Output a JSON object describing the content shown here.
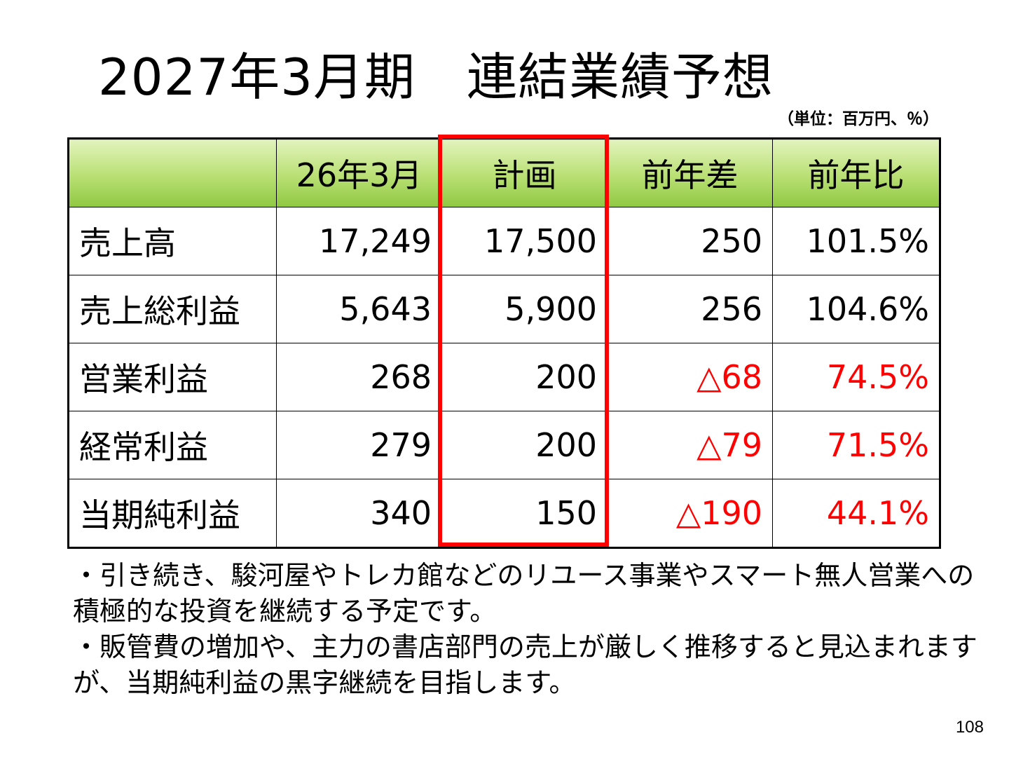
{
  "title": "2027年3月期　連結業績予想",
  "unit_note": "（単位：百万円、％）",
  "table": {
    "headers": [
      "",
      "26年3月",
      "計画",
      "前年差",
      "前年比"
    ],
    "rows": [
      {
        "label": "売上高",
        "prev": "17,249",
        "plan": "17,500",
        "diff": "250",
        "ratio": "101.5%",
        "negative": false
      },
      {
        "label": "売上総利益",
        "prev": "5,643",
        "plan": "5,900",
        "diff": "256",
        "ratio": "104.6%",
        "negative": false
      },
      {
        "label": "営業利益",
        "prev": "268",
        "plan": "200",
        "diff": "△68",
        "ratio": "74.5%",
        "negative": true
      },
      {
        "label": "経常利益",
        "prev": "279",
        "plan": "200",
        "diff": "△79",
        "ratio": "71.5%",
        "negative": true
      },
      {
        "label": "当期純利益",
        "prev": "340",
        "plan": "150",
        "diff": "△190",
        "ratio": "44.1%",
        "negative": true
      }
    ],
    "highlighted_column": "計画",
    "header_color": "#a6d65a",
    "highlight_color": "#ff0000",
    "negative_color": "#ff0000"
  },
  "notes": [
    "・引き続き、駿河屋やトレカ館などのリユース事業やスマート無人営業への積極的な投資を継続する予定です。",
    "・販管費の増加や、主力の書店部門の売上が厳しく推移すると見込まれますが、当期純利益の黒字継続を目指します。"
  ],
  "page_number": "108"
}
